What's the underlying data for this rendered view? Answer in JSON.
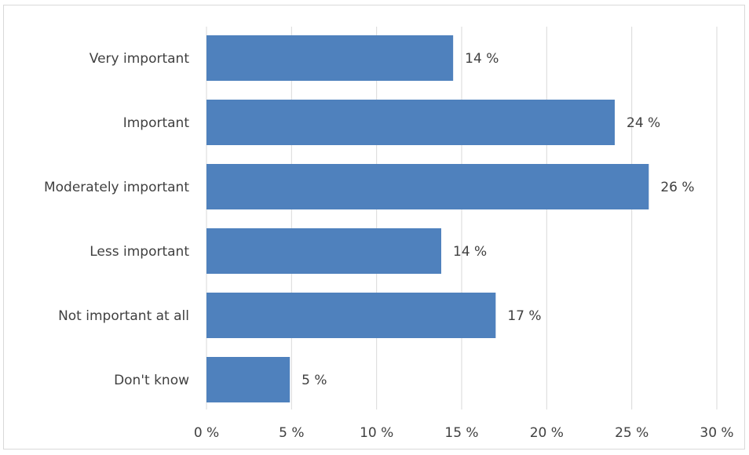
{
  "chart_data": {
    "type": "bar",
    "orientation": "horizontal",
    "categories": [
      "Very important",
      "Important",
      "Moderately important",
      "Less important",
      "Not important at all",
      "Don't know"
    ],
    "values": [
      14.5,
      24.0,
      26.0,
      13.8,
      17.0,
      4.9
    ],
    "data_labels": [
      "14 %",
      "24 %",
      "26 %",
      "14 %",
      "17 %",
      "5 %"
    ],
    "x_ticks": [
      0,
      5,
      10,
      15,
      20,
      25,
      30
    ],
    "x_tick_labels": [
      "0 %",
      "5 %",
      "10 %",
      "15 %",
      "20 %",
      "25 %",
      "30 %"
    ],
    "xlim": [
      0,
      30
    ],
    "grid": "vertical",
    "legend": "none",
    "title": "",
    "xlabel": "",
    "ylabel": "",
    "colors": {
      "bar": "#4f81bd",
      "grid": "#d9d9d9",
      "text": "#404040"
    }
  }
}
